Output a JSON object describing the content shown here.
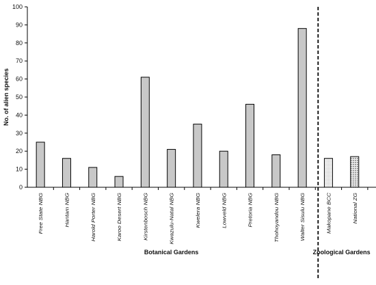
{
  "chart_data": {
    "type": "bar",
    "ylabel": "No. of alien species",
    "ylim": [
      0,
      100
    ],
    "yticks": [
      0,
      10,
      20,
      30,
      40,
      50,
      60,
      70,
      80,
      90,
      100
    ],
    "grid": false,
    "categories": [
      "Free State NBG",
      "Hantam NBG",
      "Harold Porter NBG",
      "Karoo Desert NBG",
      "Kirstenbosch NBG",
      "Kwazulu-Natal NBG",
      "Kwelera NBG",
      "Lowveld NBG",
      "Pretoria NBG",
      "Thohoyandou NBG",
      "Walter Sisulu NBG",
      "Makopane BCC",
      "National ZG"
    ],
    "values": [
      25,
      16,
      11,
      6,
      61,
      21,
      35,
      20,
      46,
      18,
      88,
      16,
      17
    ],
    "groups": [
      {
        "label": "Botanical Gardens",
        "count": 11,
        "fill": "#c8c8c8",
        "pattern": "solid"
      },
      {
        "label": "Zoological Gardens",
        "count": 2,
        "fill": "#e6e6e6",
        "pattern": "dotted"
      }
    ]
  }
}
